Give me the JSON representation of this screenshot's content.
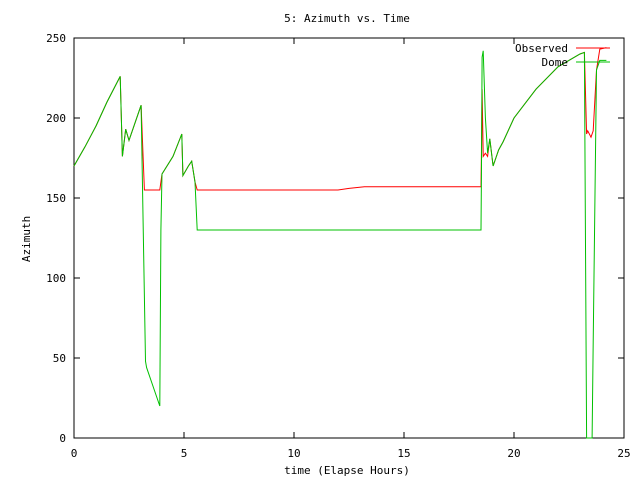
{
  "chart_data": {
    "type": "line",
    "title": "5: Azimuth vs. Time",
    "xlabel": "time (Elapse Hours)",
    "ylabel": "Azimuth",
    "xlim": [
      0,
      25
    ],
    "ylim": [
      0,
      250
    ],
    "xticks": [
      0,
      5,
      10,
      15,
      20,
      25
    ],
    "yticks": [
      0,
      50,
      100,
      150,
      200,
      250
    ],
    "grid": false,
    "legend_position": "top-right",
    "series": [
      {
        "name": "Observed",
        "color": "#ff0000",
        "x": [
          0,
          0.5,
          1.0,
          1.5,
          2.1,
          2.2,
          2.35,
          2.5,
          3.05,
          3.2,
          3.3,
          3.4,
          3.5,
          3.6,
          3.7,
          3.8,
          3.9,
          4.0,
          4.5,
          4.9,
          4.95,
          5.2,
          5.35,
          5.5,
          5.6,
          10,
          12,
          12.5,
          13.2,
          18.5,
          18.52,
          18.55,
          18.6,
          18.7,
          18.8,
          18.9,
          19.05,
          19.3,
          19.5,
          20,
          21,
          22,
          23.0,
          23.2,
          23.3,
          23.35,
          23.5,
          23.6,
          23.75,
          23.9,
          24.2
        ],
        "y": [
          170,
          182,
          195,
          210,
          226,
          176,
          193,
          186,
          208,
          155,
          155,
          155,
          155,
          155,
          155,
          155,
          155,
          165,
          176,
          190,
          164,
          170,
          173,
          160,
          155,
          155,
          155,
          156,
          157,
          157,
          178,
          218,
          176,
          178,
          176,
          187,
          170,
          180,
          185,
          200,
          218,
          232,
          240,
          241,
          190,
          192,
          188,
          192,
          230,
          243,
          244
        ]
      },
      {
        "name": "Dome",
        "color": "#00c000",
        "x": [
          0,
          0.5,
          1.0,
          1.5,
          2.1,
          2.2,
          2.35,
          2.5,
          3.05,
          3.2,
          3.25,
          3.3,
          3.9,
          3.95,
          4.0,
          4.5,
          4.9,
          4.95,
          5.2,
          5.35,
          5.5,
          5.6,
          10,
          15,
          18.5,
          18.52,
          18.55,
          18.6,
          18.7,
          18.8,
          18.9,
          19.05,
          19.3,
          19.5,
          20,
          21,
          22,
          23.0,
          23.2,
          23.3,
          23.35,
          23.55,
          23.6,
          23.75,
          23.9,
          24.2
        ],
        "y": [
          170,
          182,
          195,
          210,
          226,
          176,
          193,
          186,
          208,
          88,
          48,
          44,
          20,
          130,
          165,
          176,
          190,
          164,
          170,
          173,
          160,
          130,
          130,
          130,
          130,
          165,
          238,
          242,
          200,
          178,
          187,
          170,
          180,
          185,
          200,
          218,
          232,
          240,
          241,
          0,
          0,
          0,
          60,
          230,
          236,
          236
        ]
      }
    ]
  }
}
